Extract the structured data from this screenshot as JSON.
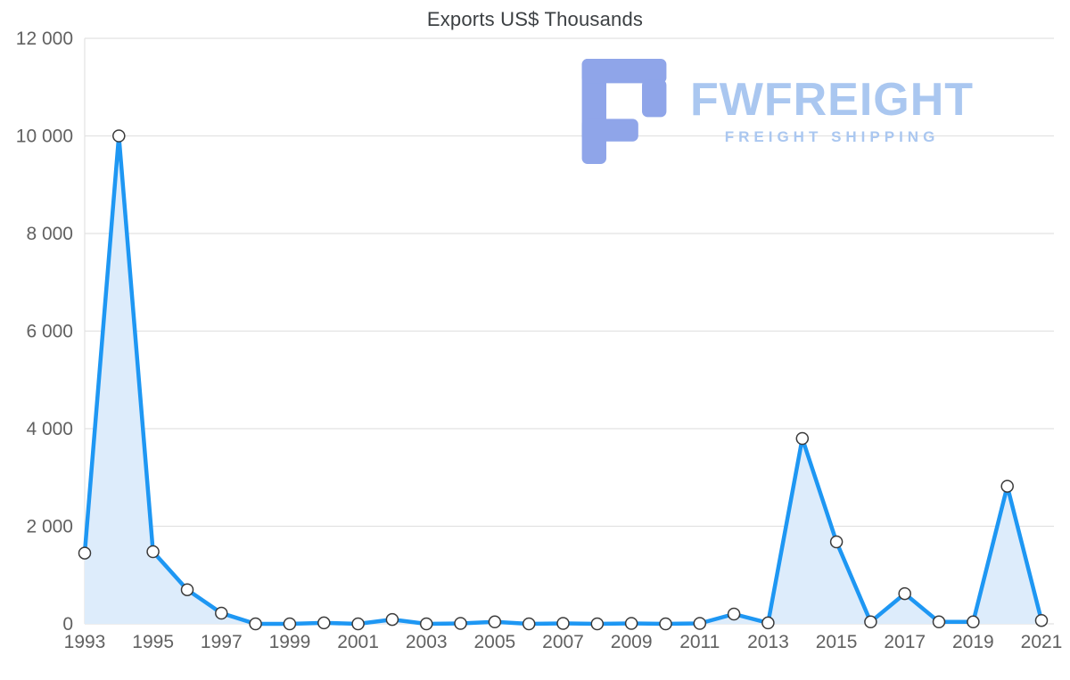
{
  "chart_data": {
    "type": "area",
    "title": "Exports US$ Thousands",
    "xlabel": "",
    "ylabel": "",
    "x": [
      1993,
      1994,
      1995,
      1996,
      1997,
      1998,
      1999,
      2000,
      2001,
      2002,
      2003,
      2004,
      2005,
      2006,
      2007,
      2008,
      2009,
      2010,
      2011,
      2012,
      2013,
      2014,
      2015,
      2016,
      2017,
      2018,
      2019,
      2020,
      2021
    ],
    "series": [
      {
        "name": "Exports US$ Thousands",
        "values": [
          1450,
          10000,
          1480,
          700,
          220,
          0,
          0,
          20,
          0,
          90,
          0,
          10,
          40,
          0,
          10,
          0,
          10,
          0,
          10,
          200,
          20,
          3800,
          1680,
          40,
          620,
          40,
          40,
          2820,
          70
        ]
      }
    ],
    "ylim": [
      0,
      12000
    ],
    "yticks": [
      0,
      2000,
      4000,
      6000,
      8000,
      10000,
      12000
    ],
    "ytick_labels": [
      "0",
      "2 000",
      "4 000",
      "6 000",
      "8 000",
      "10 000",
      "12 000"
    ],
    "xticks": [
      1993,
      1995,
      1997,
      1999,
      2001,
      2003,
      2005,
      2007,
      2009,
      2011,
      2013,
      2015,
      2017,
      2019,
      2021
    ],
    "xtick_labels": [
      "1993",
      "1995",
      "1997",
      "1999",
      "2001",
      "2003",
      "2005",
      "2007",
      "2009",
      "2011",
      "2013",
      "2015",
      "2017",
      "2019",
      "2021"
    ],
    "grid": "horizontal",
    "legend": "none",
    "marker": "circle",
    "colors": {
      "line": "#1e97f3",
      "area_fill": "#ddecfb",
      "marker_fill": "#ffffff",
      "marker_stroke": "#3a3a3a",
      "grid": "#e2e2e2",
      "tick_text": "#616161",
      "title_text": "#3c4043"
    }
  },
  "watermark": {
    "brand": "FWFREIGHT",
    "tagline": "FREIGHT SHIPPING",
    "text_color": "#aac7f0",
    "logo_color": "#8fa5e9",
    "logo_icon": "fwfreight-logo-icon"
  }
}
